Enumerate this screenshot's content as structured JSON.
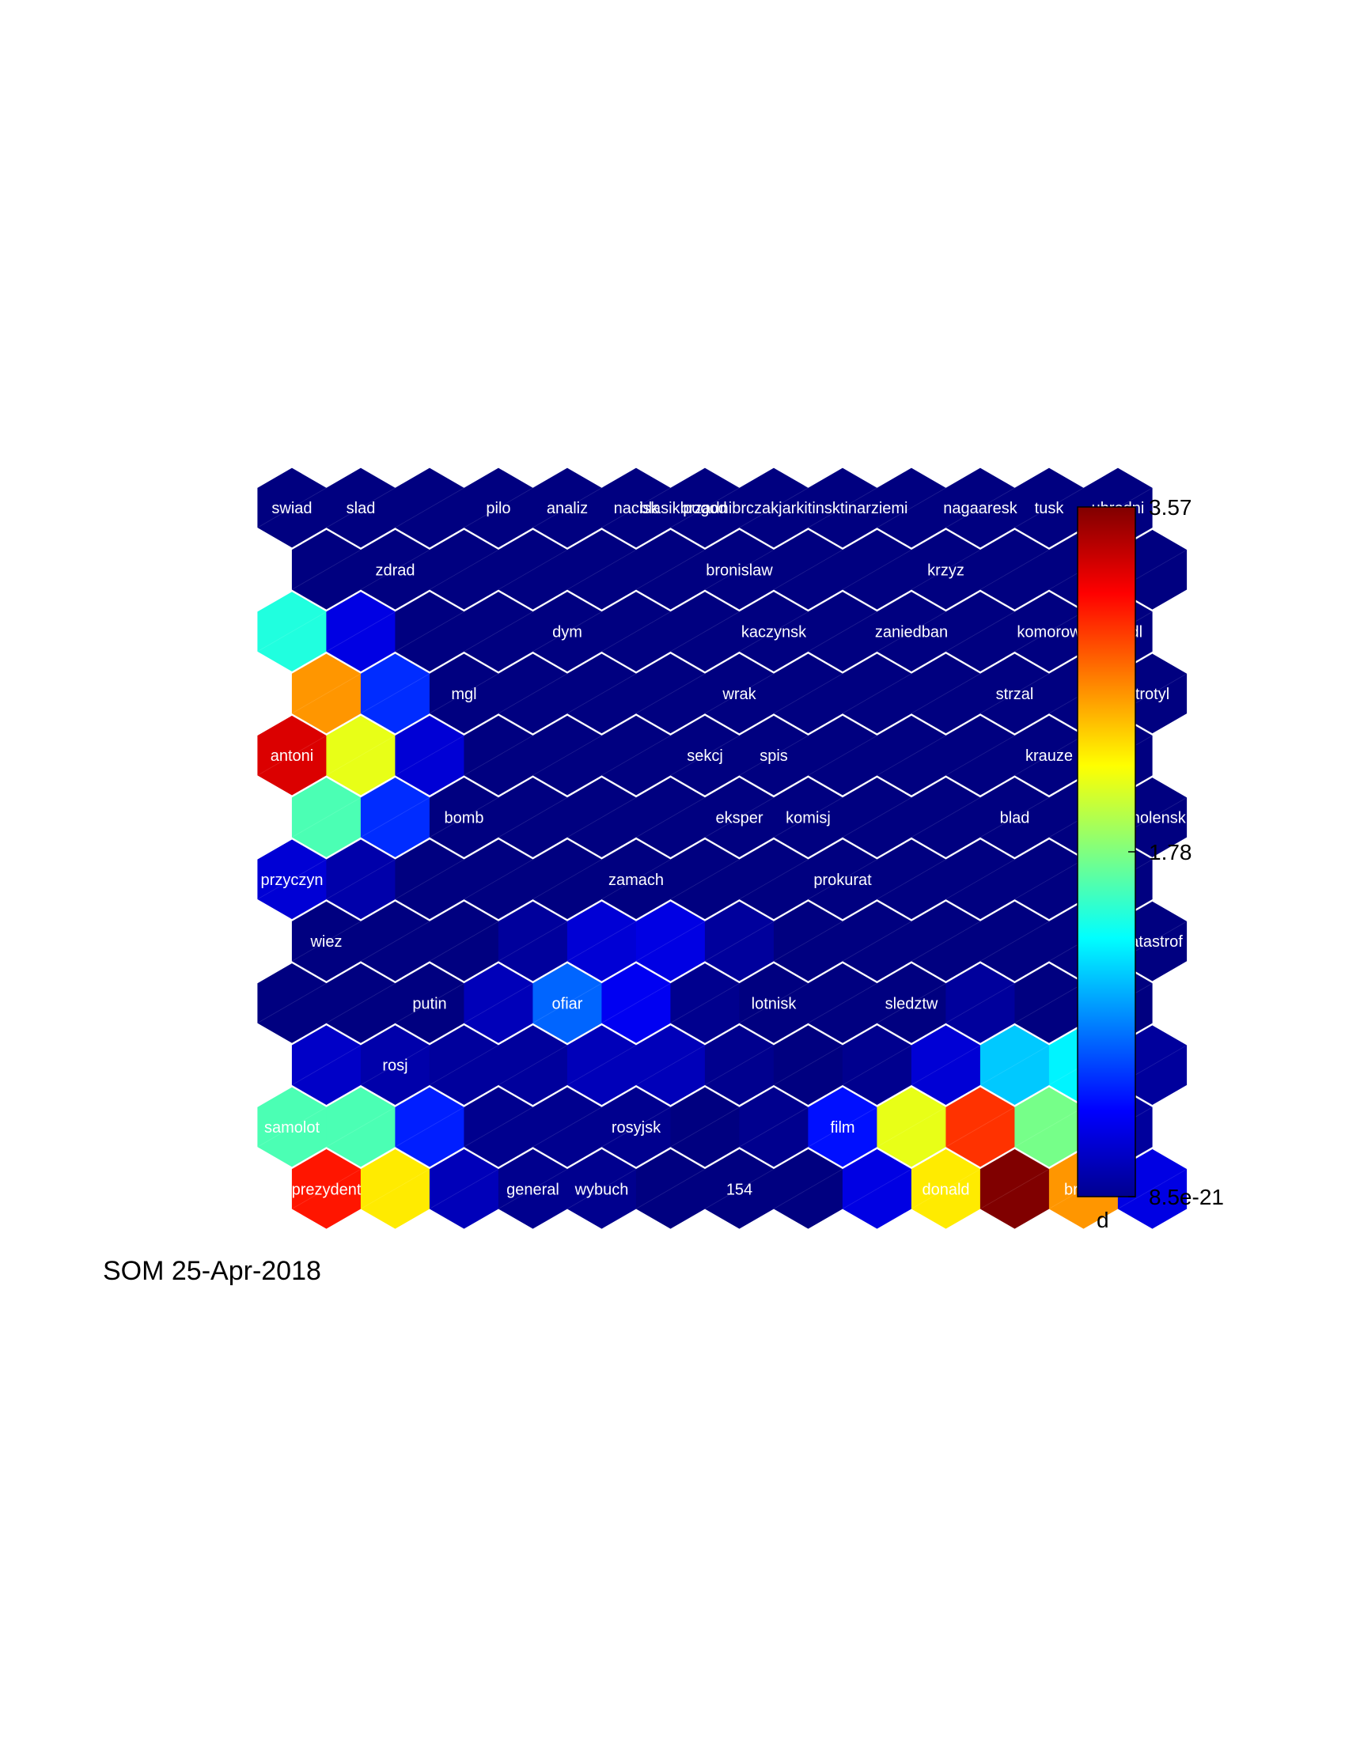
{
  "caption": "SOM 25-Apr-2018",
  "chart_data": {
    "type": "heatmap",
    "title": "",
    "xlabel": "",
    "ylabel": "",
    "grid_shape": "hexagonal",
    "rows": 12,
    "cols": 13,
    "colormap": "jet",
    "colorbar": {
      "label": "d",
      "min": 8.5e-21,
      "max": 3.57,
      "tick_labels": [
        "3.57",
        "1.78",
        "8.5e-21"
      ],
      "tick_values": [
        3.57,
        1.78,
        8.5e-21
      ]
    },
    "values": [
      [
        0,
        0,
        0,
        0,
        0,
        0,
        0,
        0,
        0,
        0,
        0,
        0,
        0
      ],
      [
        0,
        0,
        0,
        0,
        0,
        0,
        0,
        0,
        0,
        0,
        0,
        0,
        0
      ],
      [
        1.45,
        0.35,
        0,
        0,
        0,
        0,
        0,
        0,
        0,
        0,
        0,
        0,
        0
      ],
      [
        2.6,
        0.6,
        0,
        0,
        0,
        0,
        0,
        0,
        0,
        0,
        0,
        0,
        0
      ],
      [
        3.25,
        2.15,
        0.3,
        0,
        0,
        0,
        0,
        0,
        0,
        0,
        0,
        0,
        0
      ],
      [
        1.6,
        0.6,
        0,
        0,
        0,
        0,
        0,
        0,
        0,
        0,
        0,
        0,
        0
      ],
      [
        0.3,
        0.15,
        0,
        0,
        0,
        0,
        0,
        0,
        0,
        0,
        0,
        0,
        0
      ],
      [
        0,
        0,
        0,
        0.1,
        0.3,
        0.35,
        0.1,
        0,
        0,
        0,
        0,
        0,
        0
      ],
      [
        0,
        0,
        0,
        0.2,
        0.8,
        0.4,
        0.05,
        0,
        0,
        0,
        0.1,
        0,
        0
      ],
      [
        0.25,
        0.15,
        0.1,
        0.1,
        0.2,
        0.2,
        0.05,
        0,
        0.05,
        0.3,
        1.15,
        1.3,
        0.1
      ],
      [
        1.6,
        1.6,
        0.55,
        0.05,
        0.05,
        0.05,
        0,
        0.05,
        0.5,
        2.15,
        2.95,
        1.75,
        0.1
      ],
      [
        3.05,
        2.3,
        0.2,
        0.05,
        0.05,
        0,
        0,
        0,
        0.35,
        2.3,
        3.57,
        2.6,
        0.35
      ]
    ],
    "labels": [
      {
        "row": 0,
        "col": 0,
        "text": "swiad"
      },
      {
        "row": 0,
        "col": 1,
        "text": "slad"
      },
      {
        "row": 0,
        "col": 3,
        "text": "pilo"
      },
      {
        "row": 0,
        "col": 4,
        "text": "analiz"
      },
      {
        "row": 0,
        "col": 5,
        "text": "nacisk"
      },
      {
        "row": 0,
        "col": 6,
        "text": "pogod"
      },
      {
        "row": 0,
        "col": 7,
        "text": "blasikbrzadnibrczakjarkitinsktinarziemi"
      },
      {
        "row": 0,
        "col": 10,
        "text": "nagaaresk"
      },
      {
        "row": 0,
        "col": 11,
        "text": "tusk"
      },
      {
        "row": 0,
        "col": 12,
        "text": "ubrodni"
      },
      {
        "row": 1,
        "col": 1,
        "text": "zdrad"
      },
      {
        "row": 1,
        "col": 6,
        "text": "bronislaw"
      },
      {
        "row": 1,
        "col": 9,
        "text": "krzyz"
      },
      {
        "row": 2,
        "col": 4,
        "text": "dym"
      },
      {
        "row": 2,
        "col": 7,
        "text": "kaczynsk"
      },
      {
        "row": 2,
        "col": 9,
        "text": "zaniedban"
      },
      {
        "row": 2,
        "col": 11,
        "text": "komorow"
      },
      {
        "row": 2,
        "col": 12,
        "text": "skrzydl"
      },
      {
        "row": 3,
        "col": 2,
        "text": "mgl"
      },
      {
        "row": 3,
        "col": 6,
        "text": "wrak"
      },
      {
        "row": 3,
        "col": 10,
        "text": "strzal"
      },
      {
        "row": 3,
        "col": 12,
        "text": "trotyl"
      },
      {
        "row": 4,
        "col": 0,
        "text": "antoni"
      },
      {
        "row": 4,
        "col": 6,
        "text": "sekcj"
      },
      {
        "row": 4,
        "col": 7,
        "text": "spis"
      },
      {
        "row": 4,
        "col": 11,
        "text": "krauze"
      },
      {
        "row": 5,
        "col": 2,
        "text": "bomb"
      },
      {
        "row": 5,
        "col": 6,
        "text": "eksper"
      },
      {
        "row": 5,
        "col": 7,
        "text": "komisj"
      },
      {
        "row": 5,
        "col": 10,
        "text": "blad"
      },
      {
        "row": 5,
        "col": 12,
        "text": "smolensk"
      },
      {
        "row": 6,
        "col": 0,
        "text": "przyczyn"
      },
      {
        "row": 6,
        "col": 5,
        "text": "zamach"
      },
      {
        "row": 6,
        "col": 8,
        "text": "prokurat"
      },
      {
        "row": 7,
        "col": 0,
        "text": "wiez"
      },
      {
        "row": 7,
        "col": 12,
        "text": "katastrof"
      },
      {
        "row": 8,
        "col": 2,
        "text": "putin"
      },
      {
        "row": 8,
        "col": 4,
        "text": "ofiar"
      },
      {
        "row": 8,
        "col": 7,
        "text": "lotnisk"
      },
      {
        "row": 8,
        "col": 9,
        "text": "sledztw"
      },
      {
        "row": 9,
        "col": 1,
        "text": "rosj"
      },
      {
        "row": 10,
        "col": 0,
        "text": "samolot"
      },
      {
        "row": 10,
        "col": 5,
        "text": "rosyjsk"
      },
      {
        "row": 10,
        "col": 8,
        "text": "film"
      },
      {
        "row": 11,
        "col": 0,
        "text": "prezydent"
      },
      {
        "row": 11,
        "col": 3,
        "text": "general"
      },
      {
        "row": 11,
        "col": 4,
        "text": "wybuch"
      },
      {
        "row": 11,
        "col": 6,
        "text": "154"
      },
      {
        "row": 11,
        "col": 9,
        "text": "donald"
      },
      {
        "row": 11,
        "col": 11,
        "text": "brzoz"
      }
    ]
  }
}
